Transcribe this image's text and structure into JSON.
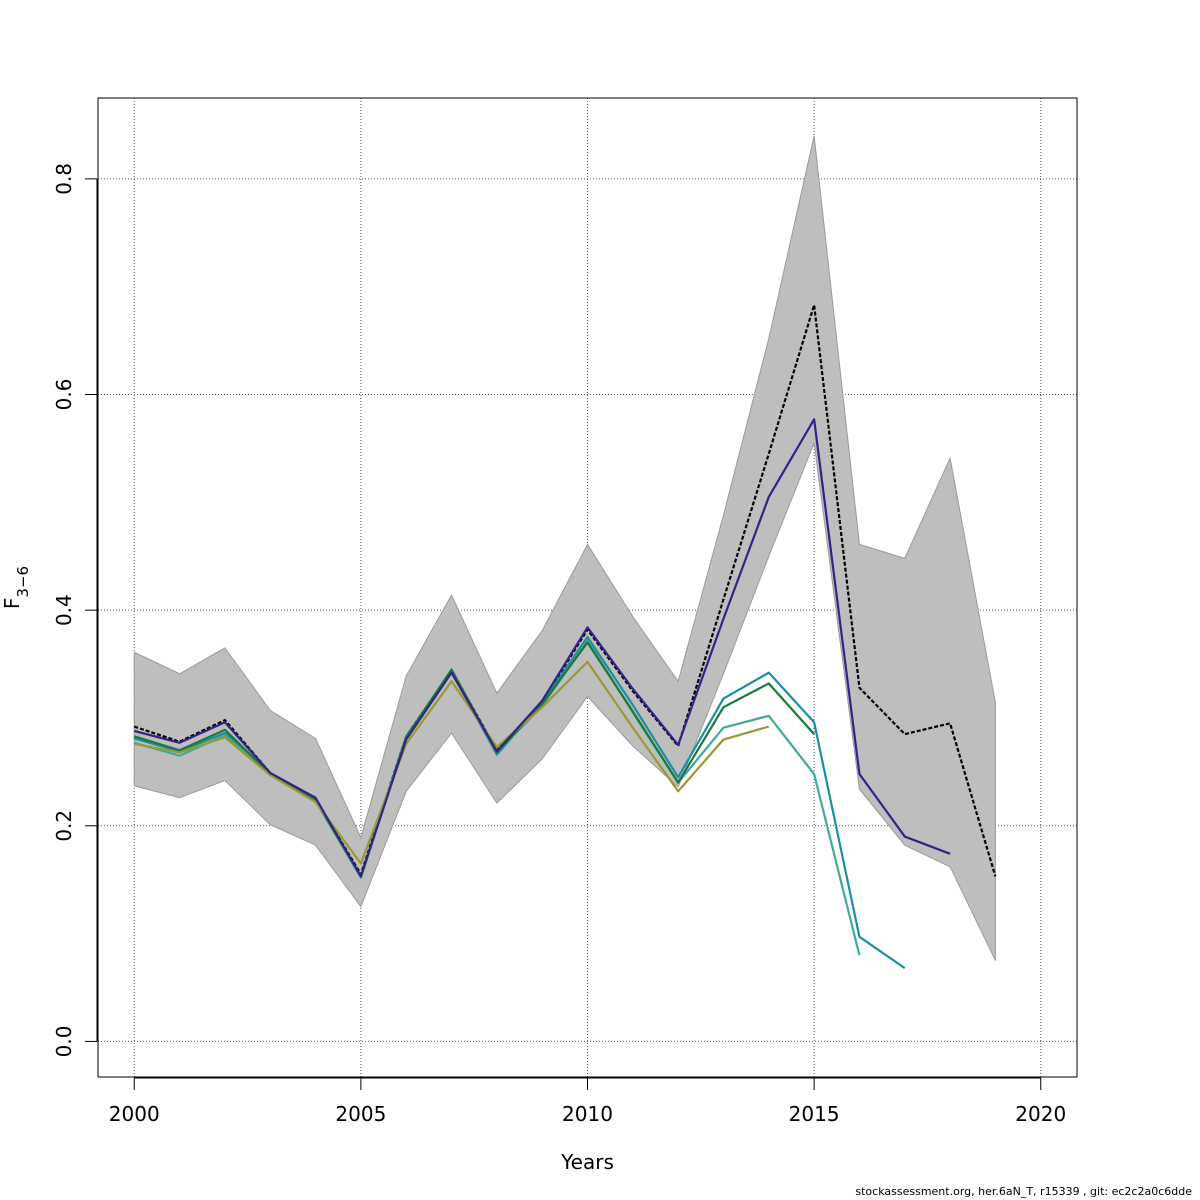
{
  "chart_data": {
    "type": "line",
    "title": "",
    "xlabel": "Years",
    "ylabel": "F",
    "ylabel_subscript": "3−6",
    "xlim": [
      1999.2,
      2020.8
    ],
    "ylim": [
      -0.033,
      0.875
    ],
    "x_ticks": [
      2000,
      2005,
      2010,
      2015,
      2020
    ],
    "y_ticks": [
      0.0,
      0.2,
      0.4,
      0.6,
      0.8
    ],
    "x_tick_labels": [
      "2000",
      "2005",
      "2010",
      "2015",
      "2020"
    ],
    "y_tick_labels": [
      "0.0",
      "0.2",
      "0.4",
      "0.6",
      "0.8"
    ],
    "grid": true,
    "confidence_band": {
      "color": "#bebebe",
      "x": [
        2000,
        2001,
        2002,
        2003,
        2004,
        2005,
        2006,
        2007,
        2008,
        2009,
        2010,
        2011,
        2012,
        2013,
        2014,
        2015,
        2016,
        2017,
        2018,
        2019
      ],
      "lower": [
        0.237,
        0.226,
        0.242,
        0.201,
        0.182,
        0.125,
        0.232,
        0.286,
        0.221,
        0.262,
        0.32,
        0.274,
        0.236,
        0.341,
        0.45,
        0.555,
        0.234,
        0.182,
        0.162,
        0.075
      ],
      "upper": [
        0.361,
        0.341,
        0.365,
        0.307,
        0.281,
        0.189,
        0.339,
        0.414,
        0.323,
        0.381,
        0.461,
        0.394,
        0.334,
        0.488,
        0.652,
        0.84,
        0.461,
        0.448,
        0.541,
        0.314
      ]
    },
    "series": [
      {
        "color": "#000000",
        "dashed": true,
        "x": [
          2000,
          2001,
          2002,
          2003,
          2004,
          2005,
          2006,
          2007,
          2008,
          2009,
          2010,
          2011,
          2012,
          2013,
          2014,
          2015,
          2016,
          2017,
          2018,
          2019
        ],
        "values": [
          0.292,
          0.278,
          0.298,
          0.249,
          0.225,
          0.155,
          0.283,
          0.344,
          0.27,
          0.315,
          0.382,
          0.325,
          0.274,
          0.41,
          0.545,
          0.683,
          0.328,
          0.285,
          0.295,
          0.153
        ]
      },
      {
        "color": "#1b8fa0",
        "x": [
          2000,
          2001,
          2002,
          2003,
          2004,
          2005,
          2006,
          2007,
          2008,
          2009,
          2010,
          2011,
          2012,
          2013,
          2014,
          2015,
          2016,
          2017
        ],
        "values": [
          0.281,
          0.269,
          0.286,
          0.248,
          0.224,
          0.152,
          0.283,
          0.343,
          0.266,
          0.314,
          0.375,
          0.312,
          0.245,
          0.318,
          0.342,
          0.296,
          0.097,
          0.068
        ]
      },
      {
        "color": "#42a89a",
        "x": [
          2000,
          2001,
          2002,
          2003,
          2004,
          2005,
          2006,
          2007,
          2008,
          2009,
          2010,
          2011,
          2012,
          2013,
          2014,
          2015,
          2016
        ],
        "values": [
          0.277,
          0.265,
          0.284,
          0.247,
          0.223,
          0.152,
          0.282,
          0.344,
          0.268,
          0.311,
          0.372,
          0.305,
          0.24,
          0.291,
          0.302,
          0.248,
          0.08
        ]
      },
      {
        "color": "#1a7a3a",
        "x": [
          2000,
          2001,
          2002,
          2003,
          2004,
          2005,
          2006,
          2007,
          2008,
          2009,
          2010,
          2011,
          2012,
          2013,
          2014,
          2015
        ],
        "values": [
          0.283,
          0.27,
          0.289,
          0.248,
          0.224,
          0.153,
          0.282,
          0.345,
          0.268,
          0.313,
          0.37,
          0.306,
          0.24,
          0.31,
          0.332,
          0.285
        ]
      },
      {
        "color": "#999933",
        "x": [
          2000,
          2001,
          2002,
          2003,
          2004,
          2005,
          2006,
          2007,
          2008,
          2009,
          2010,
          2011,
          2012,
          2013,
          2014
        ],
        "values": [
          0.276,
          0.268,
          0.282,
          0.247,
          0.222,
          0.165,
          0.276,
          0.334,
          0.273,
          0.31,
          0.352,
          0.291,
          0.232,
          0.28,
          0.292
        ]
      },
      {
        "color": "#332288",
        "x": [
          2000,
          2001,
          2002,
          2003,
          2004,
          2005,
          2006,
          2007,
          2008,
          2009,
          2010,
          2011,
          2012,
          2013,
          2014,
          2015,
          2016,
          2017,
          2018
        ],
        "values": [
          0.288,
          0.277,
          0.296,
          0.249,
          0.226,
          0.153,
          0.28,
          0.342,
          0.269,
          0.316,
          0.384,
          0.327,
          0.275,
          0.392,
          0.505,
          0.577,
          0.248,
          0.19,
          0.174
        ]
      }
    ]
  },
  "footer": "stockassessment.org, her.6aN_T, r15339 , git: ec2c2a0c6dde"
}
